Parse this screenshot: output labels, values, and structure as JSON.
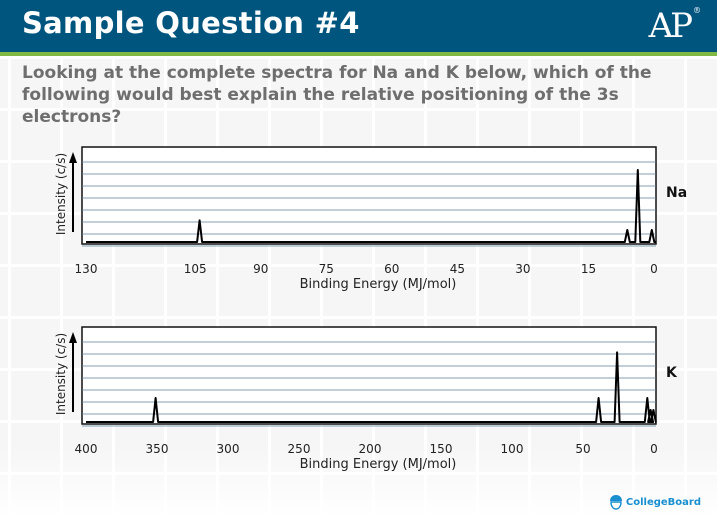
{
  "header": {
    "title": "Sample Question #4",
    "logo_text": "AP",
    "logo_mark": "®"
  },
  "question": "Looking at the complete spectra for Na and K below, which of the following would best explain the relative positioning of the 3s electrons?",
  "footer": {
    "brand": "CollegeBoard",
    "brand_icon": "acorn-icon"
  },
  "chart_data": [
    {
      "type": "line",
      "series_label": "Na",
      "xlabel": "Binding Energy (MJ/mol)",
      "ylabel": "Intensity (c/s)",
      "x_reversed": true,
      "xlim": [
        0,
        130
      ],
      "ylim": [
        0,
        8
      ],
      "grid": true,
      "xticks": [
        130,
        105,
        90,
        75,
        60,
        45,
        30,
        15,
        0
      ],
      "peaks": [
        {
          "x": 104,
          "height": 1.8
        },
        {
          "x": 6.1,
          "height": 1.0
        },
        {
          "x": 3.7,
          "height": 6.0
        },
        {
          "x": 0.5,
          "height": 1.0
        }
      ]
    },
    {
      "type": "line",
      "series_label": "K",
      "xlabel": "Binding Energy (MJ/mol)",
      "ylabel": "Intensity (c/s)",
      "x_reversed": true,
      "xlim": [
        0,
        400
      ],
      "ylim": [
        0,
        8
      ],
      "grid": true,
      "xticks": [
        400,
        350,
        300,
        250,
        200,
        150,
        100,
        50,
        0
      ],
      "peaks": [
        {
          "x": 351,
          "height": 2.0
        },
        {
          "x": 39,
          "height": 2.0
        },
        {
          "x": 26,
          "height": 5.8
        },
        {
          "x": 4.7,
          "height": 2.0
        },
        {
          "x": 2.4,
          "height": 1.0
        },
        {
          "x": 0.4,
          "height": 1.0
        }
      ]
    }
  ]
}
